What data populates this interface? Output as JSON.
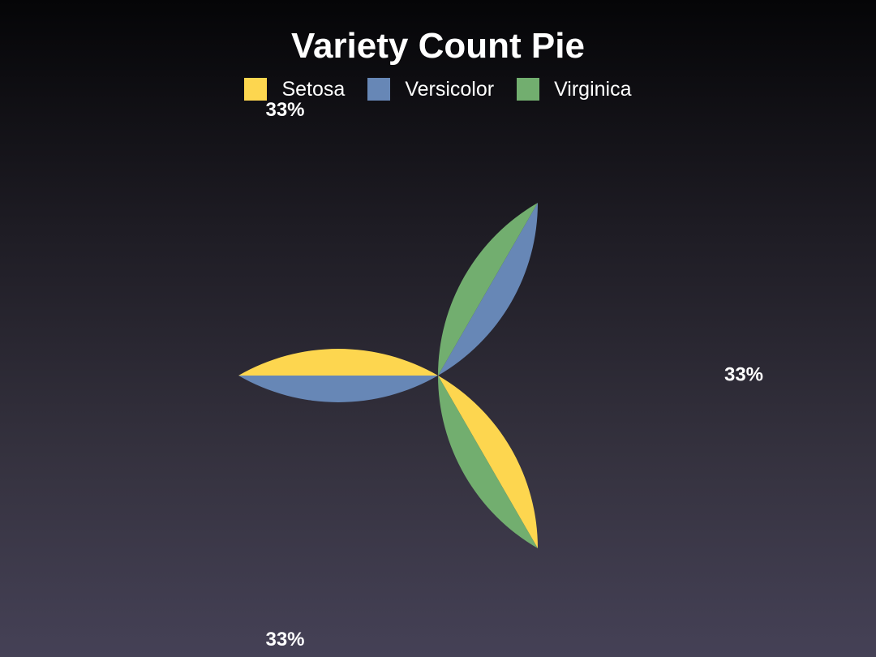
{
  "chart_data": {
    "type": "pie",
    "title": "Variety Count Pie",
    "legend_position": "top-center",
    "slices": [
      {
        "label": "Setosa",
        "value": 33.3333,
        "display": "33%",
        "color": "#fdd64f"
      },
      {
        "label": "Versicolor",
        "value": 33.3333,
        "display": "33%",
        "color": "#6787b6"
      },
      {
        "label": "Virginica",
        "value": 33.3333,
        "display": "33%",
        "color": "#72ae6f"
      }
    ]
  }
}
